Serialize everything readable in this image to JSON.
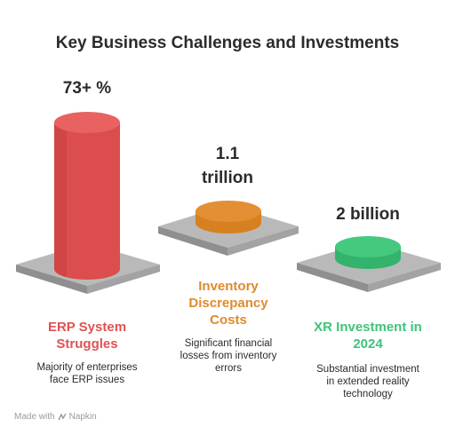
{
  "title": "Key Business Challenges and Investments",
  "items": [
    {
      "value": "73+ %",
      "label_line1": "ERP System",
      "label_line2": "Struggles",
      "desc_line1": "Majority of enterprises",
      "desc_line2": "face ERP issues",
      "color": "#e05252",
      "level": "high"
    },
    {
      "value_line1": "1.1",
      "value_line2": "trillion",
      "label_line1": "Inventory",
      "label_line2": "Discrepancy",
      "label_line3": "Costs",
      "desc_line1": "Significant financial",
      "desc_line2": "losses from inventory",
      "desc_line3": "errors",
      "color": "#e08a2c",
      "level": "low"
    },
    {
      "value": "2 billion",
      "label_line1": "XR Investment in",
      "label_line2": "2024",
      "desc_line1": "Substantial investment",
      "desc_line2": "in extended reality",
      "desc_line3": "technology",
      "color": "#3ec47a",
      "level": "low"
    }
  ],
  "footer": {
    "made_with": "Made with",
    "brand": "Napkin"
  }
}
